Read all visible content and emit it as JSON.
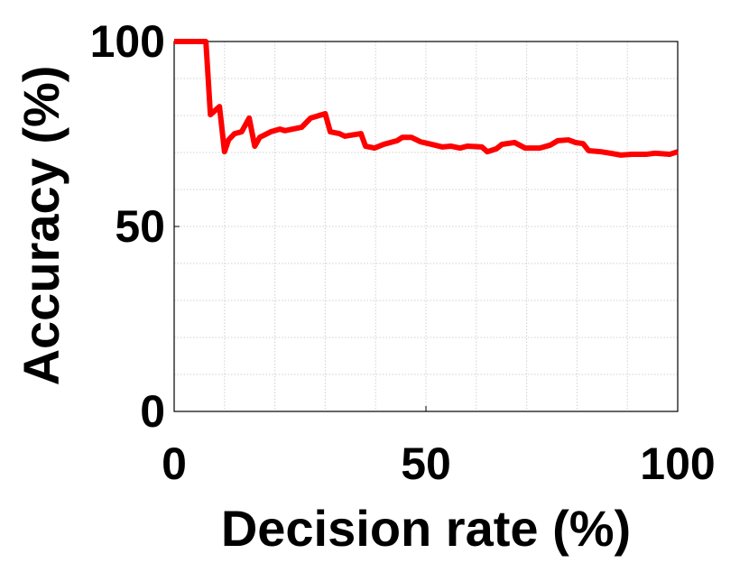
{
  "chart_data": {
    "type": "line",
    "xlabel": "Decision rate (%)",
    "ylabel": "Accuracy (%)",
    "x": [
      0,
      6.3,
      7.2,
      9,
      10,
      10.8,
      12,
      13.4,
      14.9,
      16,
      17,
      19.2,
      21,
      22,
      25.3,
      27.1,
      30,
      31,
      32.8,
      33.9,
      37.1,
      38,
      39.8,
      41.6,
      44.3,
      45.3,
      47.1,
      48.9,
      51.1,
      53.2,
      55,
      56.8,
      58.2,
      61.1,
      62.2,
      64,
      65.1,
      67.6,
      69.7,
      72.6,
      74.7,
      76.2,
      78.3,
      79.7,
      81.2,
      82.3,
      84.8,
      86.6,
      88.7,
      90.9,
      93.7,
      95.5,
      98.4,
      100
    ],
    "series": [
      {
        "name": "Accuracy",
        "color": "#ff0000",
        "values": [
          100,
          100,
          80.2,
          82.4,
          70.2,
          73.4,
          75.1,
          75.6,
          79.3,
          71.7,
          74.1,
          75.6,
          76.3,
          75.9,
          76.8,
          79.3,
          80.5,
          75.6,
          75.1,
          74.4,
          75.1,
          71.7,
          71.2,
          72.2,
          73.2,
          74.1,
          74.1,
          72.9,
          72.2,
          71.5,
          71.7,
          71.2,
          71.7,
          71.5,
          70.2,
          71,
          72.2,
          72.7,
          71.2,
          71.2,
          72,
          73.2,
          73.4,
          72.7,
          72.4,
          70.5,
          70.2,
          69.8,
          69.3,
          69.5,
          69.5,
          69.8,
          69.5,
          70.2
        ]
      }
    ],
    "xlim": [
      0,
      100
    ],
    "ylim": [
      0,
      100
    ],
    "xticks": [
      0,
      50,
      100
    ],
    "yticks": [
      0,
      50,
      100
    ],
    "xminor": [
      10,
      20,
      30,
      40,
      60,
      70,
      80,
      90
    ],
    "yminor": [
      10,
      20,
      30,
      40,
      60,
      70,
      80,
      90
    ],
    "grid": true
  }
}
